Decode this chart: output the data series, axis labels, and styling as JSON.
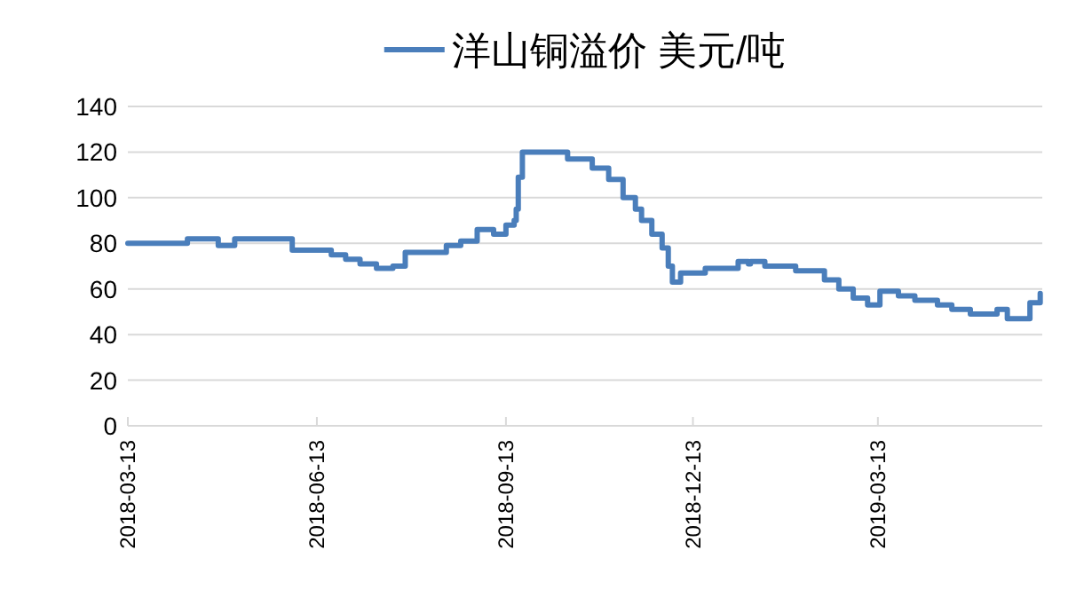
{
  "chart_data": {
    "type": "step",
    "x": [
      "2018-03-13",
      "2018-04-11",
      "2018-04-26",
      "2018-05-04",
      "2018-06-01",
      "2018-06-20",
      "2018-06-27",
      "2018-07-04",
      "2018-07-12",
      "2018-07-20",
      "2018-07-26",
      "2018-08-15",
      "2018-08-22",
      "2018-08-30",
      "2018-09-07",
      "2018-09-13",
      "2018-09-17",
      "2018-09-18",
      "2018-09-19",
      "2018-09-21",
      "2018-10-13",
      "2018-10-25",
      "2018-11-02",
      "2018-11-09",
      "2018-11-15",
      "2018-11-18",
      "2018-11-23",
      "2018-11-28",
      "2018-12-01",
      "2018-12-03",
      "2018-12-07",
      "2018-12-19",
      "2019-01-04",
      "2019-01-09",
      "2019-01-10",
      "2019-01-17",
      "2019-02-01",
      "2019-02-15",
      "2019-02-22",
      "2019-03-01",
      "2019-03-08",
      "2019-03-14",
      "2019-03-23",
      "2019-03-31",
      "2019-04-11",
      "2019-04-18",
      "2019-04-27",
      "2019-05-10",
      "2019-05-15",
      "2019-05-26",
      "2019-05-31"
    ],
    "series": [
      {
        "name": "洋山铜溢价 美元/吨",
        "color": "#4a7ebb",
        "values": [
          80,
          82,
          79,
          82,
          77,
          75,
          73,
          71,
          69,
          70,
          76,
          79,
          81,
          86,
          84,
          88,
          90,
          95,
          109,
          120,
          117,
          113,
          108,
          100,
          95,
          90,
          84,
          78,
          70,
          63,
          67,
          69,
          72,
          71,
          72,
          70,
          68,
          64,
          60,
          56,
          53,
          59,
          57,
          55,
          53,
          51,
          49,
          51,
          47,
          54,
          58
        ]
      }
    ],
    "xlim": [
      "2018-03-13",
      "2019-06-01"
    ],
    "xticks": [
      "2018-03-13",
      "2018-06-13",
      "2018-09-13",
      "2018-12-13",
      "2019-03-13"
    ],
    "ylim": [
      0,
      140
    ],
    "yticks": [
      0,
      20,
      40,
      60,
      80,
      100,
      120,
      140
    ],
    "grid": "y",
    "legend": "top"
  }
}
